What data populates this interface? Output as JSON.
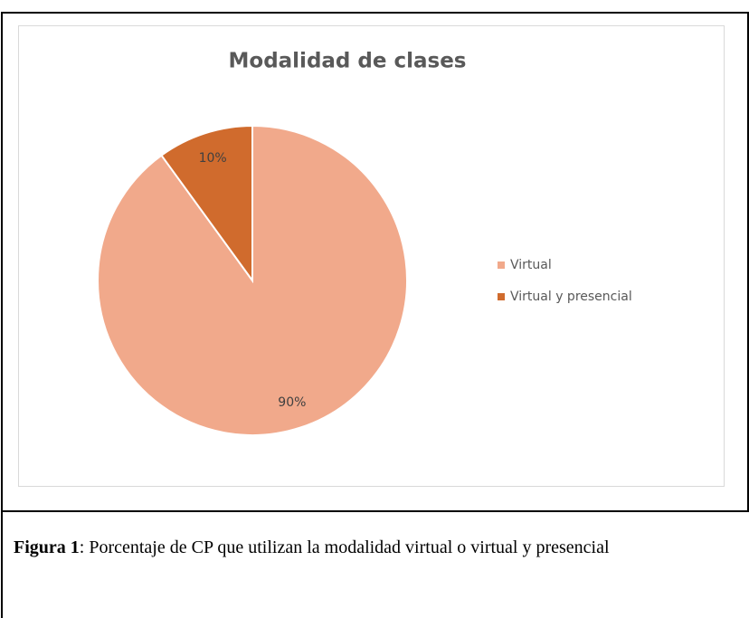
{
  "chart_data": {
    "type": "pie",
    "title": "Modalidad de clases",
    "categories": [
      "Virtual",
      "Virtual y presencial"
    ],
    "values": [
      90,
      10
    ],
    "value_labels": [
      "90%",
      "10%"
    ],
    "colors": [
      "#f1a98b",
      "#d06b2d"
    ],
    "legend": "right"
  },
  "caption": {
    "label": "Figura 1",
    "text": ": Porcentaje de CP que utilizan la modalidad virtual o virtual y presencial"
  }
}
